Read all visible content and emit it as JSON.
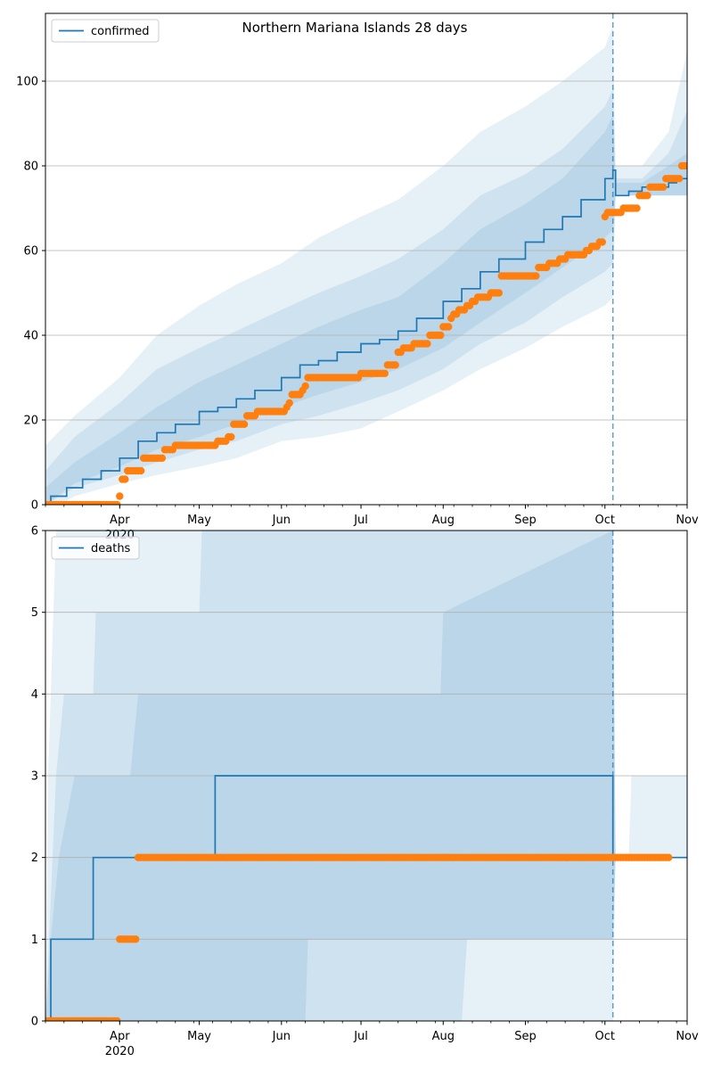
{
  "figure": {
    "title": "Northern Mariana Islands 28 days"
  },
  "colors": {
    "line": "#1f77b4",
    "band": "#1f77b4",
    "observed": "#ff7f0e",
    "grid": "#b0b0b0",
    "vline": "#1f77b4"
  },
  "chart_data": [
    {
      "type": "line",
      "name": "confirmed",
      "legend": "confirmed",
      "legend_position": "upper-left",
      "xlim": [
        "2020-03-04",
        "2020-11-01"
      ],
      "ylim": [
        0,
        116
      ],
      "y_ticks": [
        0,
        20,
        40,
        60,
        80,
        100
      ],
      "x_ticks": [
        {
          "date": "2020-04-01",
          "label": "Apr",
          "sublabel": "2020"
        },
        {
          "date": "2020-05-01",
          "label": "May"
        },
        {
          "date": "2020-06-01",
          "label": "Jun"
        },
        {
          "date": "2020-07-01",
          "label": "Jul"
        },
        {
          "date": "2020-08-01",
          "label": "Aug"
        },
        {
          "date": "2020-09-01",
          "label": "Sep"
        },
        {
          "date": "2020-10-01",
          "label": "Oct"
        },
        {
          "date": "2020-11-01",
          "label": "Nov"
        }
      ],
      "grid": "horizontal",
      "forecast_start": "2020-10-04",
      "model_line": [
        [
          "2020-03-04",
          0
        ],
        [
          "2020-03-06",
          2
        ],
        [
          "2020-03-12",
          4
        ],
        [
          "2020-03-18",
          6
        ],
        [
          "2020-03-25",
          8
        ],
        [
          "2020-04-01",
          11
        ],
        [
          "2020-04-08",
          15
        ],
        [
          "2020-04-15",
          17
        ],
        [
          "2020-04-22",
          19
        ],
        [
          "2020-05-01",
          22
        ],
        [
          "2020-05-08",
          23
        ],
        [
          "2020-05-15",
          25
        ],
        [
          "2020-05-22",
          27
        ],
        [
          "2020-06-01",
          30
        ],
        [
          "2020-06-08",
          33
        ],
        [
          "2020-06-15",
          34
        ],
        [
          "2020-06-22",
          36
        ],
        [
          "2020-07-01",
          38
        ],
        [
          "2020-07-08",
          39
        ],
        [
          "2020-07-15",
          41
        ],
        [
          "2020-07-22",
          44
        ],
        [
          "2020-08-01",
          48
        ],
        [
          "2020-08-08",
          51
        ],
        [
          "2020-08-15",
          55
        ],
        [
          "2020-08-22",
          58
        ],
        [
          "2020-09-01",
          62
        ],
        [
          "2020-09-08",
          65
        ],
        [
          "2020-09-15",
          68
        ],
        [
          "2020-09-22",
          72
        ],
        [
          "2020-10-01",
          77
        ],
        [
          "2020-10-04",
          79
        ],
        [
          "2020-10-05",
          73
        ],
        [
          "2020-10-10",
          74
        ],
        [
          "2020-10-15",
          75
        ],
        [
          "2020-10-20",
          75
        ],
        [
          "2020-10-25",
          76
        ],
        [
          "2020-10-28",
          77
        ],
        [
          "2020-11-01",
          77
        ]
      ],
      "bands": [
        [
          [
            "2020-03-04",
            -2,
            14
          ],
          [
            "2020-03-15",
            2,
            21
          ],
          [
            "2020-04-01",
            5,
            30
          ],
          [
            "2020-04-15",
            7,
            40
          ],
          [
            "2020-05-01",
            9,
            47
          ],
          [
            "2020-05-15",
            11,
            52
          ],
          [
            "2020-06-01",
            15,
            57
          ],
          [
            "2020-06-15",
            16,
            63
          ],
          [
            "2020-07-01",
            18,
            68
          ],
          [
            "2020-07-15",
            22,
            72
          ],
          [
            "2020-08-01",
            27,
            80
          ],
          [
            "2020-08-15",
            32,
            88
          ],
          [
            "2020-09-01",
            37,
            94
          ],
          [
            "2020-09-15",
            42,
            100
          ],
          [
            "2020-10-01",
            47,
            108
          ],
          [
            "2020-10-04",
            49,
            113
          ],
          [
            "2020-10-05",
            73,
            80
          ],
          [
            "2020-10-15",
            73,
            80
          ],
          [
            "2020-10-25",
            73,
            88
          ],
          [
            "2020-11-01",
            73,
            107
          ]
        ],
        [
          [
            "2020-03-04",
            0,
            8
          ],
          [
            "2020-03-15",
            4,
            16
          ],
          [
            "2020-04-01",
            7,
            24
          ],
          [
            "2020-04-15",
            10,
            32
          ],
          [
            "2020-05-01",
            13,
            37
          ],
          [
            "2020-05-15",
            15,
            41
          ],
          [
            "2020-06-01",
            19,
            46
          ],
          [
            "2020-06-15",
            21,
            50
          ],
          [
            "2020-07-01",
            24,
            54
          ],
          [
            "2020-07-15",
            27,
            58
          ],
          [
            "2020-08-01",
            32,
            65
          ],
          [
            "2020-08-15",
            38,
            73
          ],
          [
            "2020-09-01",
            43,
            78
          ],
          [
            "2020-09-15",
            49,
            84
          ],
          [
            "2020-10-01",
            55,
            94
          ],
          [
            "2020-10-04",
            57,
            98
          ],
          [
            "2020-10-05",
            73,
            77
          ],
          [
            "2020-10-15",
            73,
            77
          ],
          [
            "2020-10-25",
            73,
            83
          ],
          [
            "2020-11-01",
            73,
            93
          ]
        ],
        [
          [
            "2020-03-04",
            0,
            4
          ],
          [
            "2020-03-15",
            5,
            10
          ],
          [
            "2020-04-01",
            9,
            17
          ],
          [
            "2020-04-15",
            13,
            23
          ],
          [
            "2020-05-01",
            16,
            29
          ],
          [
            "2020-05-15",
            19,
            33
          ],
          [
            "2020-06-01",
            23,
            38
          ],
          [
            "2020-06-15",
            26,
            42
          ],
          [
            "2020-07-01",
            29,
            46
          ],
          [
            "2020-07-15",
            32,
            49
          ],
          [
            "2020-08-01",
            37,
            57
          ],
          [
            "2020-08-15",
            43,
            65
          ],
          [
            "2020-09-01",
            50,
            71
          ],
          [
            "2020-09-15",
            56,
            77
          ],
          [
            "2020-10-01",
            63,
            88
          ],
          [
            "2020-10-04",
            65,
            92
          ],
          [
            "2020-10-05",
            73,
            76
          ],
          [
            "2020-10-15",
            73,
            76
          ],
          [
            "2020-10-25",
            73,
            80
          ],
          [
            "2020-11-01",
            73,
            83
          ]
        ]
      ],
      "observed_steps": [
        [
          "2020-03-04",
          "2020-03-31",
          0
        ],
        [
          "2020-04-01",
          "2020-04-01",
          2
        ],
        [
          "2020-04-02",
          "2020-04-03",
          6
        ],
        [
          "2020-04-04",
          "2020-04-09",
          8
        ],
        [
          "2020-04-10",
          "2020-04-17",
          11
        ],
        [
          "2020-04-18",
          "2020-04-21",
          13
        ],
        [
          "2020-04-22",
          "2020-05-07",
          14
        ],
        [
          "2020-05-08",
          "2020-05-11",
          15
        ],
        [
          "2020-05-12",
          "2020-05-13",
          16
        ],
        [
          "2020-05-14",
          "2020-05-18",
          19
        ],
        [
          "2020-05-19",
          "2020-05-22",
          21
        ],
        [
          "2020-05-23",
          "2020-06-02",
          22
        ],
        [
          "2020-06-03",
          "2020-06-03",
          23
        ],
        [
          "2020-06-04",
          "2020-06-04",
          24
        ],
        [
          "2020-06-05",
          "2020-06-08",
          26
        ],
        [
          "2020-06-09",
          "2020-06-09",
          27
        ],
        [
          "2020-06-10",
          "2020-06-10",
          28
        ],
        [
          "2020-06-11",
          "2020-06-30",
          30
        ],
        [
          "2020-07-01",
          "2020-07-10",
          31
        ],
        [
          "2020-07-11",
          "2020-07-14",
          33
        ],
        [
          "2020-07-15",
          "2020-07-16",
          36
        ],
        [
          "2020-07-17",
          "2020-07-20",
          37
        ],
        [
          "2020-07-21",
          "2020-07-26",
          38
        ],
        [
          "2020-07-27",
          "2020-07-31",
          40
        ],
        [
          "2020-08-01",
          "2020-08-03",
          42
        ],
        [
          "2020-08-04",
          "2020-08-04",
          44
        ],
        [
          "2020-08-05",
          "2020-08-06",
          45
        ],
        [
          "2020-08-07",
          "2020-08-09",
          46
        ],
        [
          "2020-08-10",
          "2020-08-11",
          47
        ],
        [
          "2020-08-12",
          "2020-08-13",
          48
        ],
        [
          "2020-08-14",
          "2020-08-18",
          49
        ],
        [
          "2020-08-19",
          "2020-08-22",
          50
        ],
        [
          "2020-08-23",
          "2020-09-05",
          54
        ],
        [
          "2020-09-06",
          "2020-09-09",
          56
        ],
        [
          "2020-09-10",
          "2020-09-13",
          57
        ],
        [
          "2020-09-14",
          "2020-09-16",
          58
        ],
        [
          "2020-09-17",
          "2020-09-23",
          59
        ],
        [
          "2020-09-24",
          "2020-09-25",
          60
        ],
        [
          "2020-09-26",
          "2020-09-28",
          61
        ],
        [
          "2020-09-29",
          "2020-09-30",
          62
        ],
        [
          "2020-10-01",
          "2020-10-01",
          68
        ],
        [
          "2020-10-02",
          "2020-10-07",
          69
        ],
        [
          "2020-10-08",
          "2020-10-13",
          70
        ],
        [
          "2020-10-14",
          "2020-10-17",
          73
        ],
        [
          "2020-10-18",
          "2020-10-23",
          75
        ],
        [
          "2020-10-24",
          "2020-10-29",
          77
        ],
        [
          "2020-10-30",
          "2020-11-01",
          80
        ]
      ]
    },
    {
      "type": "line",
      "name": "deaths",
      "legend": "deaths",
      "legend_position": "upper-left",
      "xlim": [
        "2020-03-04",
        "2020-11-01"
      ],
      "ylim": [
        0,
        6
      ],
      "y_ticks": [
        0,
        1,
        2,
        3,
        4,
        5,
        6
      ],
      "x_ticks": [
        {
          "date": "2020-04-01",
          "label": "Apr",
          "sublabel": "2020"
        },
        {
          "date": "2020-05-01",
          "label": "May"
        },
        {
          "date": "2020-06-01",
          "label": "Jun"
        },
        {
          "date": "2020-07-01",
          "label": "Jul"
        },
        {
          "date": "2020-08-01",
          "label": "Aug"
        },
        {
          "date": "2020-09-01",
          "label": "Sep"
        },
        {
          "date": "2020-10-01",
          "label": "Oct"
        },
        {
          "date": "2020-11-01",
          "label": "Nov"
        }
      ],
      "grid": "horizontal",
      "forecast_start": "2020-10-04",
      "model_line": [
        [
          "2020-03-04",
          0
        ],
        [
          "2020-03-06",
          0
        ],
        [
          "2020-03-06",
          1
        ],
        [
          "2020-03-22",
          1
        ],
        [
          "2020-03-22",
          2
        ],
        [
          "2020-05-06",
          2
        ],
        [
          "2020-05-07",
          3
        ],
        [
          "2020-10-04",
          3
        ],
        [
          "2020-10-04",
          2
        ],
        [
          "2020-11-01",
          2
        ]
      ],
      "bands": [
        [
          [
            "2020-03-04",
            0,
            0
          ],
          [
            "2020-03-05",
            0,
            3
          ],
          [
            "2020-03-07",
            0,
            5
          ],
          [
            "2020-03-08",
            0,
            6
          ],
          [
            "2020-06-10",
            0,
            6
          ],
          [
            "2020-06-11",
            1,
            6
          ],
          [
            "2020-10-04",
            1,
            6
          ],
          [
            "2020-10-05",
            2,
            2
          ],
          [
            "2020-10-10",
            2,
            2
          ],
          [
            "2020-10-11",
            2,
            3
          ],
          [
            "2020-11-01",
            2,
            3
          ]
        ],
        [
          [
            "2020-03-04",
            0,
            0
          ],
          [
            "2020-03-08",
            0,
            3
          ],
          [
            "2020-03-11",
            0,
            4
          ],
          [
            "2020-03-22",
            0,
            4
          ],
          [
            "2020-03-23",
            0,
            5
          ],
          [
            "2020-05-01",
            0,
            5
          ],
          [
            "2020-05-02",
            0,
            6
          ],
          [
            "2020-08-08",
            0,
            6
          ],
          [
            "2020-08-10",
            1,
            6
          ],
          [
            "2020-10-04",
            1,
            6
          ],
          [
            "2020-10-05",
            2,
            2
          ],
          [
            "2020-11-01",
            2,
            2
          ]
        ],
        [
          [
            "2020-03-04",
            0,
            0
          ],
          [
            "2020-03-06",
            0,
            1
          ],
          [
            "2020-03-09",
            0,
            2
          ],
          [
            "2020-03-15",
            0,
            3
          ],
          [
            "2020-04-05",
            0,
            3
          ],
          [
            "2020-04-08",
            0,
            4
          ],
          [
            "2020-07-31",
            0,
            4
          ],
          [
            "2020-08-01",
            0,
            5
          ],
          [
            "2020-10-04",
            0,
            6
          ],
          [
            "2020-10-05",
            2,
            2
          ],
          [
            "2020-11-01",
            2,
            2
          ]
        ]
      ],
      "observed_steps": [
        [
          "2020-03-04",
          "2020-03-31",
          0
        ],
        [
          "2020-04-01",
          "2020-04-07",
          1
        ],
        [
          "2020-04-08",
          "2020-10-25",
          2
        ]
      ]
    }
  ]
}
